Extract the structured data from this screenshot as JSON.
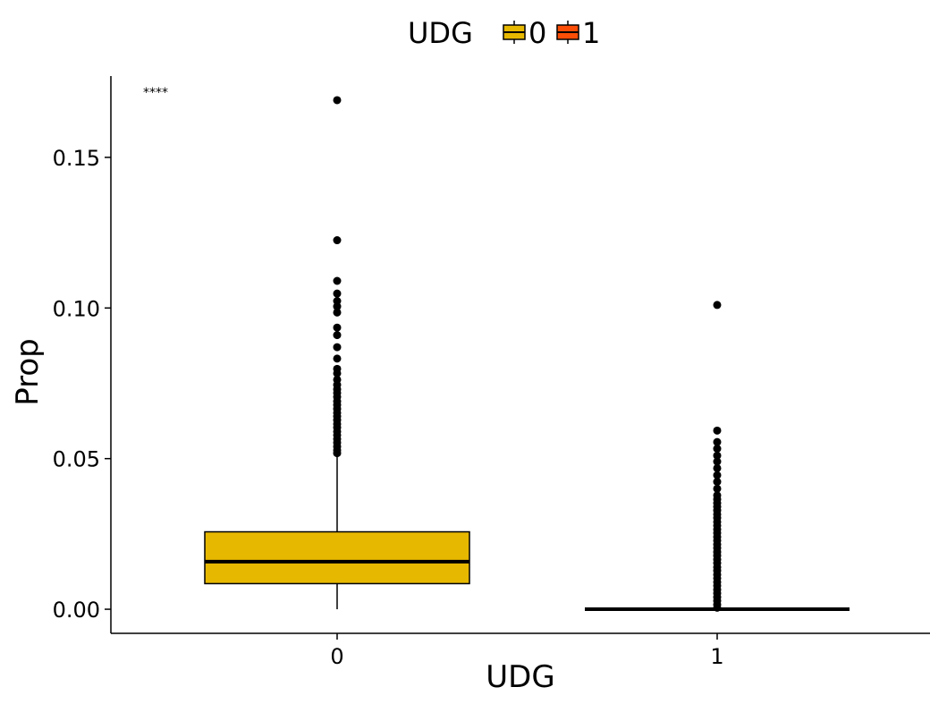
{
  "chart_data": {
    "type": "boxplot",
    "xlabel": "UDG",
    "ylabel": "Prop",
    "categories": [
      "0",
      "1"
    ],
    "ylim": [
      -0.008,
      0.177
    ],
    "yticks": [
      0.0,
      0.05,
      0.1,
      0.15
    ],
    "ytick_labels": [
      "0.00",
      "0.05",
      "0.10",
      "0.15"
    ],
    "grid": false,
    "legend": {
      "title": "UDG",
      "position": "top",
      "entries": [
        {
          "label": "0",
          "color": "#E7B800"
        },
        {
          "label": "1",
          "color": "#FC4E07"
        }
      ]
    },
    "annotation": "****",
    "boxes": [
      {
        "category": "0",
        "color": "#E7B800",
        "whisker_low": 0.0,
        "q1": 0.0085,
        "median": 0.0158,
        "q3": 0.0257,
        "whisker_high": 0.051,
        "outliers": [
          0.169,
          0.1225,
          0.109,
          0.1048,
          0.1023,
          0.1005,
          0.0985,
          0.0935,
          0.091,
          0.087,
          0.0832,
          0.0798,
          0.0783,
          0.0762,
          0.0745,
          0.073,
          0.0718,
          0.0705,
          0.069,
          0.0678,
          0.0665,
          0.0652,
          0.064,
          0.0628,
          0.0615,
          0.0603,
          0.059,
          0.0578,
          0.0565,
          0.0553,
          0.054,
          0.0528,
          0.0518
        ]
      },
      {
        "category": "1",
        "color": "#FC4E07",
        "whisker_low": 0.0,
        "q1": 0.0,
        "median": 0.0,
        "q3": 0.0,
        "whisker_high": 0.0,
        "outliers": [
          0.101,
          0.0593,
          0.0555,
          0.0533,
          0.051,
          0.049,
          0.0468,
          0.0445,
          0.0423,
          0.04,
          0.0378,
          0.0365,
          0.0352,
          0.034,
          0.0328,
          0.0315,
          0.0303,
          0.029,
          0.0278,
          0.0265,
          0.0253,
          0.024,
          0.0228,
          0.0215,
          0.0203,
          0.019,
          0.0178,
          0.0165,
          0.0153,
          0.014,
          0.0128,
          0.0115,
          0.0103,
          0.009,
          0.0078,
          0.0065,
          0.0053,
          0.004,
          0.0028,
          0.0015,
          0.0005
        ]
      }
    ]
  }
}
